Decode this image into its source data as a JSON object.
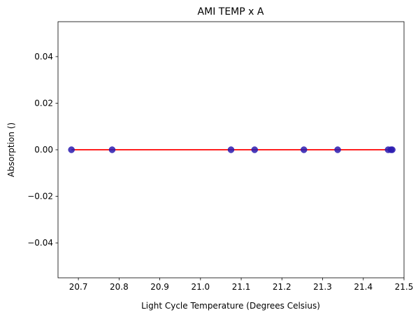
{
  "chart_data": {
    "type": "scatter",
    "title": "AMI TEMP x A",
    "xlabel": "Light Cycle Temperature (Degrees Celsius)",
    "ylabel": "Absorption ()",
    "xlim": [
      20.65,
      21.5
    ],
    "ylim": [
      -0.055,
      0.055
    ],
    "xticks": [
      20.7,
      20.8,
      20.9,
      21.0,
      21.1,
      21.2,
      21.3,
      21.4,
      21.5
    ],
    "xtick_labels": [
      "20.7",
      "20.8",
      "20.9",
      "21.0",
      "21.1",
      "21.2",
      "21.3",
      "21.4",
      "21.5"
    ],
    "yticks": [
      -0.04,
      -0.02,
      0.0,
      0.02,
      0.04
    ],
    "ytick_labels": [
      "−0.04",
      "−0.02",
      "0.00",
      "0.02",
      "0.04"
    ],
    "grid": false,
    "series": [
      {
        "type": "scatter",
        "color": "#2a1bb0",
        "x": [
          20.683,
          20.783,
          21.075,
          21.133,
          21.254,
          21.337,
          21.461,
          21.468,
          21.471
        ],
        "y": [
          0,
          0,
          0,
          0,
          0,
          0,
          0,
          0,
          0
        ]
      },
      {
        "type": "line",
        "color": "#ff0000",
        "x": [
          20.683,
          21.471
        ],
        "y": [
          0,
          0
        ]
      }
    ]
  }
}
